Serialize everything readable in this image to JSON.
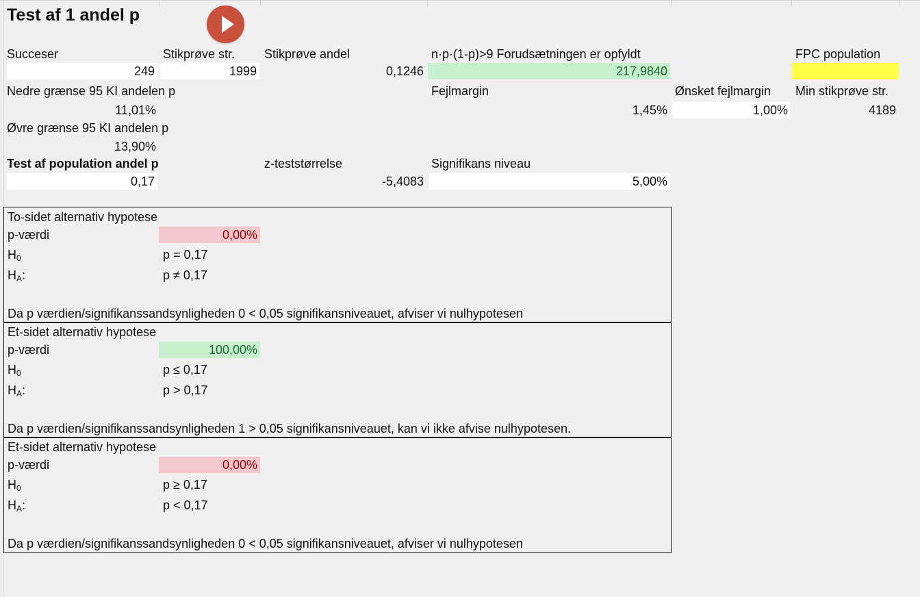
{
  "title": "Test af 1 andel p",
  "run_button_icon": "play-icon",
  "headers": {
    "succeser": "Succeser",
    "stikproeve_str": "Stikprøve str.",
    "stikproeve_andel": "Stikprøve andel",
    "condition_label": "n·p·(1-p)>9 Forudsætningen er opfyldt",
    "fpc_population": "FPC population"
  },
  "values": {
    "succeser": "249",
    "stikproeve_str": "1999",
    "stikproeve_andel": "0,1246",
    "condition_value": "217,9840",
    "fpc_population": ""
  },
  "ci": {
    "lower_label": "Nedre grænse 95 KI andelen p",
    "lower_value": "11,01%",
    "upper_label": "Øvre grænse 95 KI andelen p",
    "upper_value": "13,90%"
  },
  "margin": {
    "fejlmargin_label": "Fejlmargin",
    "fejlmargin_value": "1,45%",
    "oensket_label": "Ønsket fejlmargin",
    "oensket_value": "1,00%",
    "min_label": "Min stikprøve str.",
    "min_value": "4189"
  },
  "test": {
    "label": "Test af population andel p",
    "value": "0,17",
    "z_label": "z-teststørrelse",
    "z_value": "-5,4083",
    "sig_label": "Signifikans niveau",
    "sig_value": "5,00%"
  },
  "hypotheses": [
    {
      "title": "To-sidet alternativ hypotese",
      "p_label": "p-værdi",
      "p_value": "0,00%",
      "h0_letter": "H",
      "h0_sub": "0",
      "h0_text": "p = 0,17",
      "ha_letter": "H",
      "ha_sub": "A",
      "ha_colon": ":",
      "ha_text": "p ≠ 0,17",
      "conclusion": "Da p værdien/signifikanssandsynligheden 0 < 0,05 signifikansniveauet, afviser vi nulhypotesen"
    },
    {
      "title": "Et-sidet alternativ hypotese",
      "p_label": "p-værdi",
      "p_value": "100,00%",
      "h0_letter": "H",
      "h0_sub": "0",
      "h0_text": "p ≤ 0,17",
      "ha_letter": "H",
      "ha_sub": "A",
      "ha_colon": ":",
      "ha_text": "p > 0,17",
      "conclusion": "Da p værdien/signifikanssandsynligheden 1 > 0,05 signifikansniveauet, kan vi ikke afvise nulhypotesen."
    },
    {
      "title": "Et-sidet alternativ hypotese",
      "p_label": "p-værdi",
      "p_value": "0,00%",
      "h0_letter": "H",
      "h0_sub": "0",
      "h0_text": "p ≥ 0,17",
      "ha_letter": "H",
      "ha_sub": "A",
      "ha_colon": ":",
      "ha_text": "p < 0,17",
      "conclusion": "Da p værdien/signifikanssandsynligheden 0 < 0,05 signifikansniveauet, afviser vi nulhypotesen"
    }
  ]
}
